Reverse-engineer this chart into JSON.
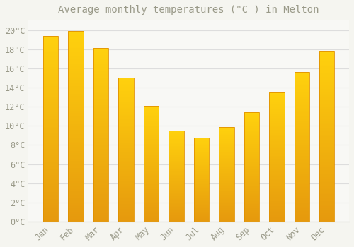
{
  "title": "Average monthly temperatures (°C ) in Melton",
  "months": [
    "Jan",
    "Feb",
    "Mar",
    "Apr",
    "May",
    "Jun",
    "Jul",
    "Aug",
    "Sep",
    "Oct",
    "Nov",
    "Dec"
  ],
  "values": [
    19.4,
    19.9,
    18.1,
    15.0,
    12.1,
    9.5,
    8.8,
    9.9,
    11.4,
    13.5,
    15.6,
    17.8
  ],
  "bar_color": "#FFAA00",
  "bar_color_top": "#FFD050",
  "bar_edge_color": "#E09000",
  "background_color": "#F5F5F0",
  "plot_bg_color": "#F8F8F5",
  "grid_color": "#DDDDDD",
  "text_color": "#999988",
  "ylim": [
    0,
    21
  ],
  "yticks": [
    0,
    2,
    4,
    6,
    8,
    10,
    12,
    14,
    16,
    18,
    20
  ],
  "title_fontsize": 10,
  "tick_fontsize": 8.5
}
